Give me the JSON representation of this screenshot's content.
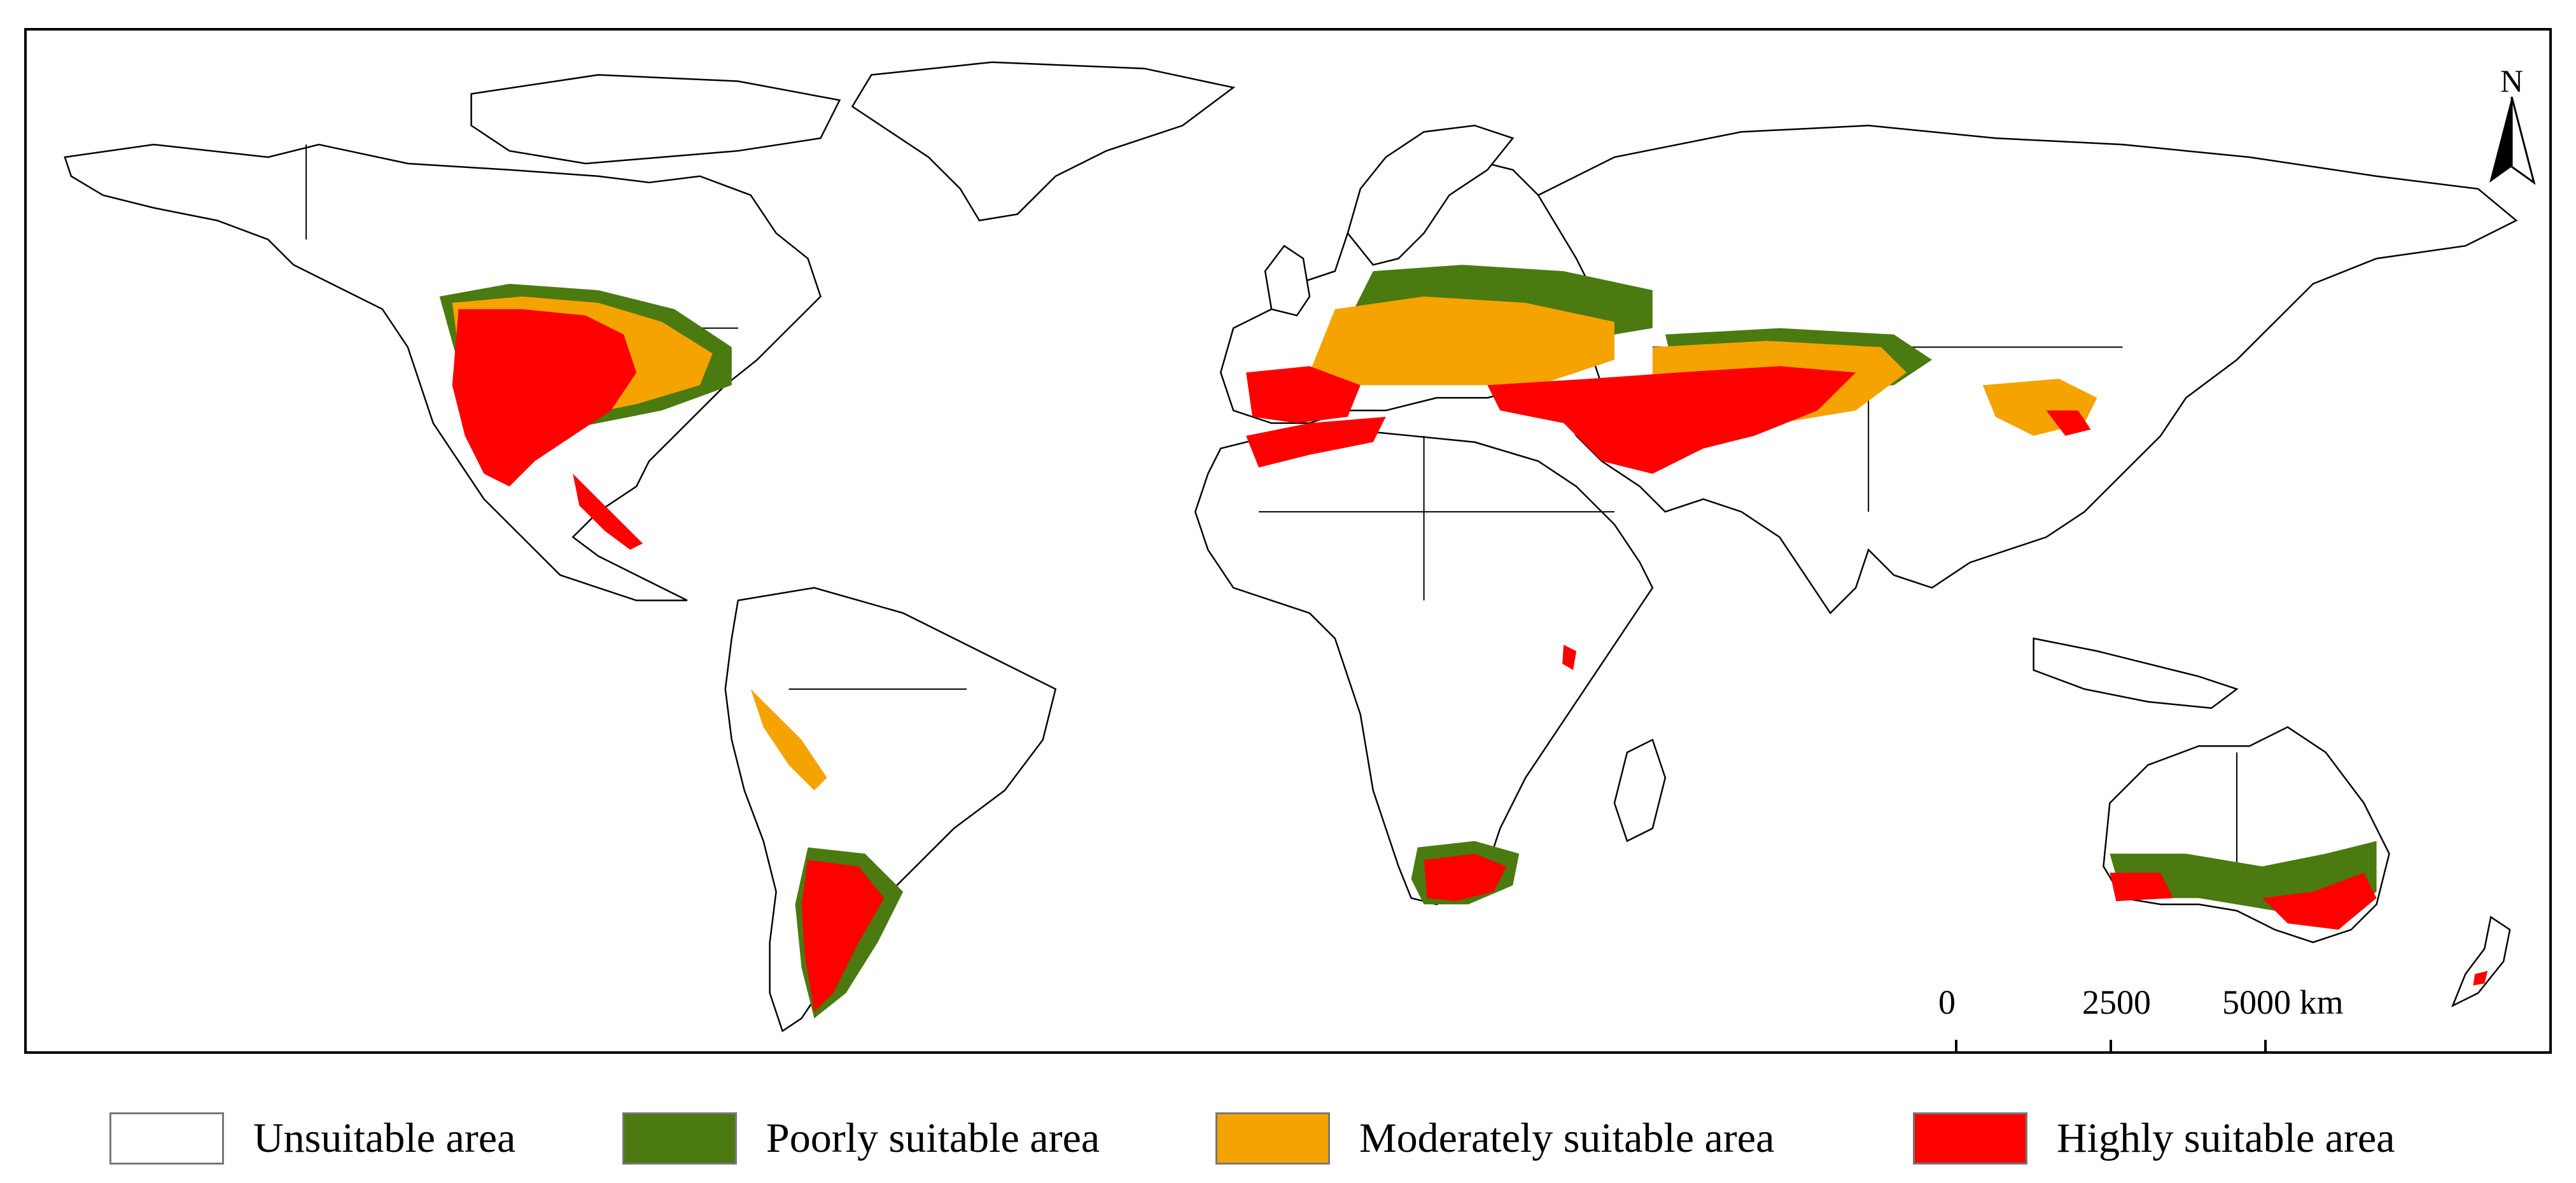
{
  "map": {
    "north_label": "N",
    "scale_bar": {
      "ticks": [
        "0",
        "2500",
        "5000 km"
      ]
    }
  },
  "legend": {
    "items": [
      {
        "label": "Unsuitable area",
        "color": "#ffffff"
      },
      {
        "label": "Poorly suitable area",
        "color": "#4a7a10"
      },
      {
        "label": "Moderately suitable area",
        "color": "#f5a300"
      },
      {
        "label": "Highly suitable area",
        "color": "#ff0000"
      }
    ]
  }
}
